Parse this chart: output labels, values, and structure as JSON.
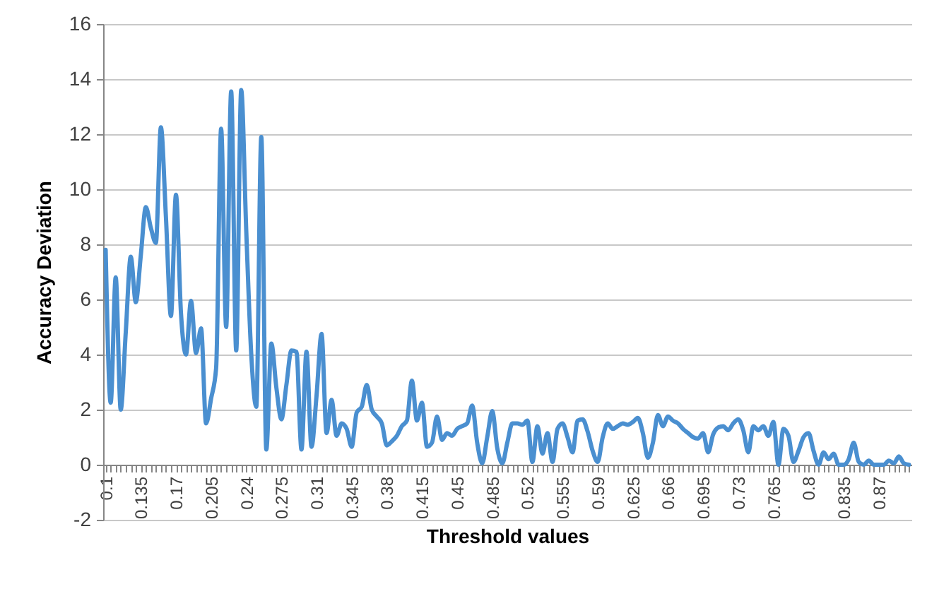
{
  "chart_data": {
    "type": "line",
    "xlabel": "Threshold values",
    "ylabel": "Accuracy Deviation",
    "categories": [
      "0.1",
      null,
      null,
      null,
      null,
      null,
      null,
      "0.135",
      null,
      null,
      null,
      null,
      null,
      null,
      "0.17",
      null,
      null,
      null,
      null,
      null,
      null,
      "0.205",
      null,
      null,
      null,
      null,
      null,
      null,
      "0.24",
      null,
      null,
      null,
      null,
      null,
      null,
      "0.275",
      null,
      null,
      null,
      null,
      null,
      null,
      "0.31",
      null,
      null,
      null,
      null,
      null,
      null,
      "0.345",
      null,
      null,
      null,
      null,
      null,
      null,
      "0.38",
      null,
      null,
      null,
      null,
      null,
      null,
      "0.415",
      null,
      null,
      null,
      null,
      null,
      null,
      "0.45",
      null,
      null,
      null,
      null,
      null,
      null,
      "0.485",
      null,
      null,
      null,
      null,
      null,
      null,
      "0.52",
      null,
      null,
      null,
      null,
      null,
      null,
      "0.555",
      null,
      null,
      null,
      null,
      null,
      null,
      "0.59",
      null,
      null,
      null,
      null,
      null,
      null,
      "0.625",
      null,
      null,
      null,
      null,
      null,
      null,
      "0.66",
      null,
      null,
      null,
      null,
      null,
      null,
      "0.695",
      null,
      null,
      null,
      null,
      null,
      null,
      "0.73",
      null,
      null,
      null,
      null,
      null,
      null,
      "0.765",
      null,
      null,
      null,
      null,
      null,
      null,
      "0.8",
      null,
      null,
      null,
      null,
      null,
      null,
      "0.835",
      null,
      null,
      null,
      null,
      null,
      null,
      "0.87",
      null,
      null,
      null,
      null,
      null,
      null
    ],
    "series": [
      {
        "color": "#4a8fd0",
        "values": [
          7.8,
          2.25,
          6.8,
          2.0,
          4.8,
          7.55,
          5.9,
          7.6,
          9.35,
          8.6,
          8.05,
          12.25,
          9.0,
          5.4,
          9.8,
          5.5,
          4.0,
          5.95,
          4.05,
          4.95,
          1.5,
          2.4,
          3.5,
          12.2,
          5.0,
          13.55,
          4.15,
          13.6,
          8.5,
          4.0,
          2.1,
          11.9,
          0.55,
          4.4,
          2.8,
          1.65,
          2.9,
          4.15,
          4.1,
          0.55,
          4.1,
          0.65,
          2.5,
          4.75,
          1.15,
          2.35,
          1.05,
          1.5,
          1.3,
          0.65,
          1.9,
          2.1,
          2.9,
          2.0,
          1.75,
          1.5,
          0.7,
          0.85,
          1.05,
          1.4,
          1.6,
          3.05,
          1.6,
          2.25,
          0.65,
          0.8,
          1.75,
          0.9,
          1.15,
          1.05,
          1.3,
          1.4,
          1.5,
          2.15,
          0.8,
          0.05,
          1.0,
          1.95,
          0.6,
          0.05,
          0.8,
          1.5,
          1.5,
          1.45,
          1.6,
          0.1,
          1.4,
          0.4,
          1.15,
          0.1,
          1.3,
          1.5,
          1.0,
          0.45,
          1.6,
          1.65,
          1.2,
          0.5,
          0.1,
          1.0,
          1.5,
          1.3,
          1.4,
          1.5,
          1.45,
          1.55,
          1.7,
          1.15,
          0.25,
          0.8,
          1.8,
          1.4,
          1.75,
          1.6,
          1.5,
          1.3,
          1.15,
          1.0,
          0.95,
          1.15,
          0.45,
          1.1,
          1.35,
          1.4,
          1.25,
          1.5,
          1.65,
          1.25,
          0.45,
          1.4,
          1.25,
          1.4,
          1.05,
          1.55,
          0,
          1.3,
          1.05,
          0.1,
          0.5,
          1.0,
          1.15,
          0.5,
          0,
          0.45,
          0.2,
          0.4,
          0,
          0,
          0.2,
          0.8,
          0.1,
          0,
          0.15,
          0,
          0,
          0,
          0.15,
          0.05,
          0.3,
          0.05,
          0
        ]
      }
    ],
    "ylim": [
      -2,
      16
    ],
    "yticks": [
      -2,
      0,
      2,
      4,
      6,
      8,
      10,
      12,
      14,
      16
    ],
    "grid": "y",
    "marker": "none",
    "line_style": "solid"
  }
}
